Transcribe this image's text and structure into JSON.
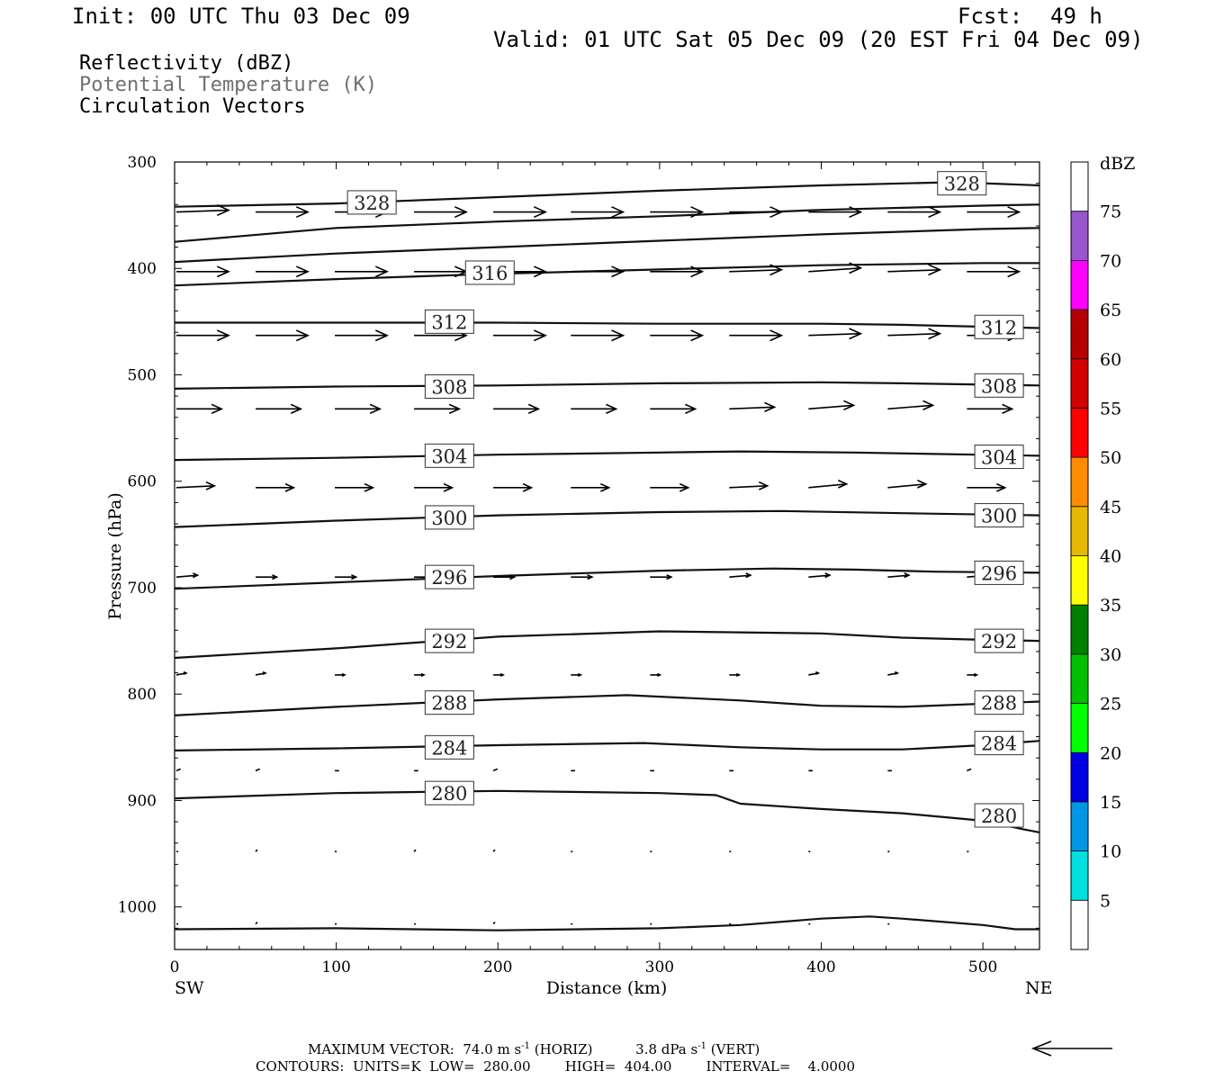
{
  "header": {
    "init": "Init: 00 UTC Thu 03 Dec 09",
    "fcst_label": "Fcst:",
    "fcst_value": "49 h",
    "valid": "Valid: 01 UTC Sat 05 Dec 09 (20 EST Fri 04 Dec 09)"
  },
  "fields": {
    "reflectivity": "Reflectivity (dBZ)",
    "theta": "Potential Temperature (K)",
    "vectors": "Circulation Vectors"
  },
  "footer": {
    "max_vector_prefix": "MAXIMUM VECTOR:  74.0 m s",
    "max_vector_sup1": "-1",
    "max_vector_mid": " (HORIZ)          3.8 dPa s",
    "max_vector_sup2": "-1",
    "max_vector_suffix": " (VERT)",
    "contours": "CONTOURS:  UNITS=K  LOW=  280.00        HIGH=  404.00        INTERVAL=    4.0000"
  },
  "chart_data": {
    "type": "cross-section",
    "xlabel": "Distance (km)",
    "ylabel": "Pressure (hPa)",
    "xlim": [
      0,
      535
    ],
    "ylim_hpa": [
      300,
      1040
    ],
    "x_ticks": [
      0,
      100,
      200,
      300,
      400,
      500
    ],
    "x_tick_labels": [
      "0",
      "100",
      "200",
      "300",
      "400",
      "500"
    ],
    "y_ticks": [
      300,
      400,
      500,
      600,
      700,
      800,
      900,
      1000
    ],
    "y_tick_labels": [
      "300",
      "400",
      "500",
      "600",
      "700",
      "800",
      "900",
      "1000"
    ],
    "left_end_label": "SW",
    "right_end_label": "NE",
    "colorbar": {
      "title": "dBZ",
      "levels": [
        "5",
        "10",
        "15",
        "20",
        "25",
        "30",
        "35",
        "40",
        "45",
        "50",
        "55",
        "60",
        "65",
        "70",
        "75"
      ],
      "colors": [
        "#ffffff",
        "#00e0e0",
        "#0096e6",
        "#0000e6",
        "#00ff00",
        "#00c000",
        "#008000",
        "#ffff00",
        "#e6b800",
        "#ff8c00",
        "#ff0000",
        "#d20000",
        "#b40000",
        "#ff00ff",
        "#9955cc"
      ]
    },
    "isentropes": [
      {
        "k": 280,
        "points": [
          [
            0,
            898
          ],
          [
            100,
            893
          ],
          [
            150,
            892
          ],
          [
            200,
            891
          ],
          [
            300,
            893
          ],
          [
            335,
            895
          ],
          [
            350,
            903
          ],
          [
            400,
            908
          ],
          [
            450,
            912
          ],
          [
            500,
            919
          ],
          [
            525,
            927
          ],
          [
            535,
            930
          ]
        ]
      },
      {
        "k": 284,
        "points": [
          [
            0,
            853
          ],
          [
            100,
            851
          ],
          [
            200,
            848
          ],
          [
            290,
            846
          ],
          [
            350,
            850
          ],
          [
            400,
            852
          ],
          [
            450,
            852
          ],
          [
            500,
            848
          ],
          [
            535,
            844
          ]
        ]
      },
      {
        "k": 288,
        "points": [
          [
            0,
            820
          ],
          [
            100,
            812
          ],
          [
            200,
            805
          ],
          [
            280,
            801
          ],
          [
            350,
            806
          ],
          [
            400,
            811
          ],
          [
            450,
            812
          ],
          [
            535,
            807
          ]
        ]
      },
      {
        "k": 292,
        "points": [
          [
            0,
            766
          ],
          [
            100,
            757
          ],
          [
            200,
            746
          ],
          [
            300,
            741
          ],
          [
            400,
            743
          ],
          [
            450,
            747
          ],
          [
            500,
            749
          ],
          [
            535,
            750
          ]
        ]
      },
      {
        "k": 296,
        "points": [
          [
            0,
            701
          ],
          [
            100,
            695
          ],
          [
            200,
            689
          ],
          [
            300,
            684
          ],
          [
            370,
            682
          ],
          [
            420,
            683
          ],
          [
            470,
            685
          ],
          [
            535,
            686
          ]
        ]
      },
      {
        "k": 300,
        "points": [
          [
            0,
            643
          ],
          [
            100,
            637
          ],
          [
            200,
            632
          ],
          [
            300,
            629
          ],
          [
            375,
            628
          ],
          [
            450,
            630
          ],
          [
            535,
            632
          ]
        ]
      },
      {
        "k": 304,
        "points": [
          [
            0,
            580
          ],
          [
            100,
            578
          ],
          [
            200,
            575
          ],
          [
            300,
            573
          ],
          [
            350,
            572
          ],
          [
            420,
            573
          ],
          [
            535,
            576
          ]
        ]
      },
      {
        "k": 308,
        "points": [
          [
            0,
            513
          ],
          [
            100,
            511
          ],
          [
            200,
            510
          ],
          [
            300,
            508
          ],
          [
            400,
            507
          ],
          [
            450,
            508
          ],
          [
            535,
            510
          ]
        ]
      },
      {
        "k": 312,
        "points": [
          [
            0,
            451
          ],
          [
            100,
            451
          ],
          [
            200,
            451
          ],
          [
            300,
            452
          ],
          [
            400,
            452
          ],
          [
            450,
            453
          ],
          [
            535,
            456
          ]
        ]
      },
      {
        "k": 316,
        "points": [
          [
            0,
            416
          ],
          [
            100,
            410
          ],
          [
            200,
            405
          ],
          [
            300,
            401
          ],
          [
            400,
            397
          ],
          [
            500,
            395
          ],
          [
            535,
            395
          ]
        ]
      },
      {
        "k": 320,
        "points": [
          [
            0,
            394
          ],
          [
            100,
            386
          ],
          [
            200,
            380
          ],
          [
            300,
            374
          ],
          [
            400,
            368
          ],
          [
            500,
            363
          ],
          [
            535,
            362
          ]
        ]
      },
      {
        "k": 324,
        "points": [
          [
            0,
            375
          ],
          [
            100,
            362
          ],
          [
            200,
            356
          ],
          [
            300,
            351
          ],
          [
            400,
            345
          ],
          [
            500,
            341
          ],
          [
            535,
            340
          ]
        ]
      },
      {
        "k": 328,
        "points": [
          [
            0,
            342
          ],
          [
            100,
            339
          ],
          [
            200,
            333
          ],
          [
            300,
            327
          ],
          [
            400,
            322
          ],
          [
            480,
            319
          ],
          [
            500,
            320
          ],
          [
            535,
            322
          ]
        ]
      }
    ],
    "contour_labels": [
      {
        "text": "328",
        "x": 122,
        "p": 338
      },
      {
        "text": "328",
        "x": 487,
        "p": 320
      },
      {
        "text": "316",
        "x": 195,
        "p": 404
      },
      {
        "text": "312",
        "x": 170,
        "p": 450
      },
      {
        "text": "312",
        "x": 510,
        "p": 455
      },
      {
        "text": "308",
        "x": 170,
        "p": 511
      },
      {
        "text": "308",
        "x": 510,
        "p": 510
      },
      {
        "text": "304",
        "x": 170,
        "p": 576
      },
      {
        "text": "304",
        "x": 510,
        "p": 577
      },
      {
        "text": "300",
        "x": 170,
        "p": 634
      },
      {
        "text": "300",
        "x": 510,
        "p": 632
      },
      {
        "text": "296",
        "x": 170,
        "p": 690
      },
      {
        "text": "296",
        "x": 510,
        "p": 686
      },
      {
        "text": "292",
        "x": 170,
        "p": 750
      },
      {
        "text": "292",
        "x": 510,
        "p": 750
      },
      {
        "text": "288",
        "x": 170,
        "p": 808
      },
      {
        "text": "288",
        "x": 510,
        "p": 808
      },
      {
        "text": "284",
        "x": 170,
        "p": 850
      },
      {
        "text": "284",
        "x": 510,
        "p": 846
      },
      {
        "text": "280",
        "x": 170,
        "p": 893
      },
      {
        "text": "280",
        "x": 510,
        "p": 914
      }
    ],
    "terrain_p": [
      [
        0,
        1021
      ],
      [
        100,
        1020
      ],
      [
        200,
        1022
      ],
      [
        300,
        1020
      ],
      [
        350,
        1017
      ],
      [
        400,
        1011
      ],
      [
        430,
        1009
      ],
      [
        450,
        1011
      ],
      [
        500,
        1017
      ],
      [
        520,
        1021
      ],
      [
        535,
        1021
      ]
    ],
    "vector_x": [
      0,
      49,
      98,
      147,
      196,
      244,
      293,
      342,
      391,
      440,
      489
    ],
    "vector_rows": [
      {
        "p": 347,
        "speed": 74,
        "rise": [
          1,
          0,
          0,
          0,
          0,
          0,
          0,
          0,
          0,
          0,
          0
        ]
      },
      {
        "p": 403,
        "speed": 74,
        "rise": [
          0,
          0,
          0,
          0,
          0,
          0,
          0,
          1,
          2,
          1,
          0
        ]
      },
      {
        "p": 463,
        "speed": 74,
        "rise": [
          0,
          0,
          0,
          0,
          0,
          0,
          0,
          0,
          1,
          1,
          0
        ]
      },
      {
        "p": 532,
        "speed": 64,
        "rise": [
          0,
          0,
          0,
          0,
          0,
          0,
          0,
          1,
          2,
          2,
          0
        ]
      },
      {
        "p": 606,
        "speed": 54,
        "rise": [
          1,
          0,
          0,
          0,
          0,
          0,
          0,
          1,
          2,
          2,
          0
        ]
      },
      {
        "p": 690,
        "speed": 30,
        "rise": [
          1,
          0,
          0,
          0,
          0,
          0,
          0,
          1,
          1,
          1,
          1
        ]
      },
      {
        "p": 782,
        "speed": 14,
        "rise": [
          1,
          1,
          0,
          0,
          0,
          0,
          0,
          0,
          1,
          1,
          0
        ]
      },
      {
        "p": 872,
        "speed": 6,
        "rise": [
          1,
          1,
          0,
          0,
          1,
          0,
          0,
          0,
          0,
          0,
          1
        ]
      },
      {
        "p": 948,
        "speed": 2,
        "rise": [
          0,
          1,
          0,
          1,
          1,
          0,
          0,
          0,
          0,
          0,
          0
        ]
      },
      {
        "p": 1016,
        "speed": 1,
        "rise": [
          0,
          1,
          0,
          0,
          1,
          0,
          0,
          0,
          0,
          0,
          0
        ]
      }
    ]
  }
}
